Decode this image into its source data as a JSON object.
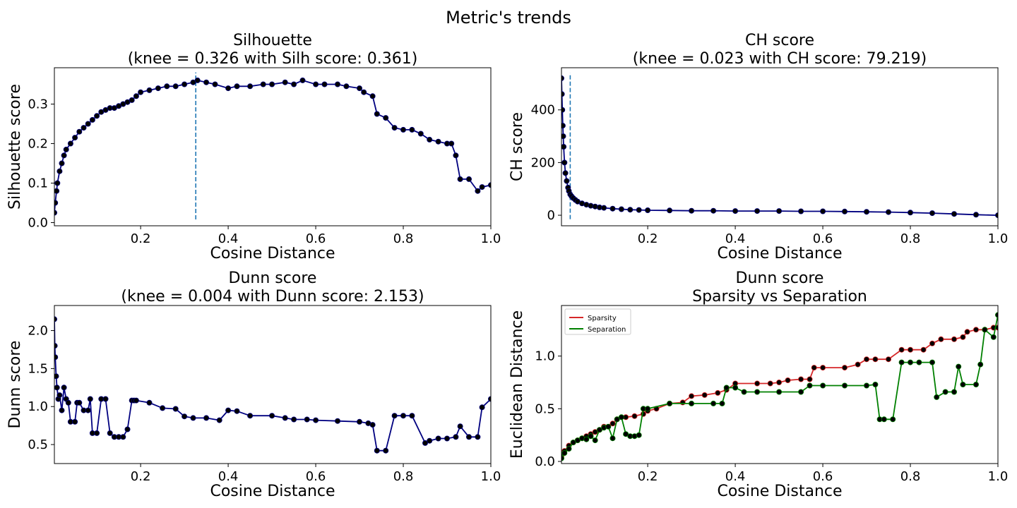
{
  "figure": {
    "title": "Metric's trends"
  },
  "chart_data": [
    {
      "type": "line",
      "title": "Silhouette",
      "subtitle": "(knee = 0.326 with Silh score: 0.361)",
      "xlabel": "Cosine Distance",
      "ylabel": "Silhouette score",
      "xlim": [
        0.003,
        1.0
      ],
      "ylim": [
        -0.008,
        0.392
      ],
      "xticks": [
        0.2,
        0.4,
        0.6,
        0.8,
        1.0
      ],
      "xtick_labels": [
        "0.2",
        "0.4",
        "0.6",
        "0.8",
        "1.0"
      ],
      "yticks": [
        0.0,
        0.1,
        0.2,
        0.3
      ],
      "ytick_labels": [
        "0.0",
        "0.1",
        "0.2",
        "0.3"
      ],
      "knee": {
        "x": 0.326,
        "y_range": [
          0.008,
          0.38
        ]
      },
      "grid": false,
      "series": [
        {
          "color": "#000080",
          "marker_color": "#000000",
          "x": [
            0.003,
            0.005,
            0.008,
            0.01,
            0.015,
            0.02,
            0.025,
            0.03,
            0.04,
            0.05,
            0.06,
            0.07,
            0.08,
            0.09,
            0.1,
            0.11,
            0.12,
            0.13,
            0.14,
            0.15,
            0.16,
            0.17,
            0.18,
            0.19,
            0.2,
            0.22,
            0.24,
            0.26,
            0.28,
            0.3,
            0.32,
            0.33,
            0.35,
            0.37,
            0.4,
            0.42,
            0.45,
            0.48,
            0.5,
            0.53,
            0.55,
            0.57,
            0.6,
            0.62,
            0.65,
            0.67,
            0.7,
            0.71,
            0.73,
            0.74,
            0.76,
            0.78,
            0.8,
            0.82,
            0.84,
            0.86,
            0.88,
            0.9,
            0.91,
            0.92,
            0.93,
            0.95,
            0.97,
            0.98,
            1.0
          ],
          "y": [
            0.025,
            0.05,
            0.08,
            0.1,
            0.13,
            0.15,
            0.17,
            0.185,
            0.2,
            0.215,
            0.23,
            0.24,
            0.25,
            0.26,
            0.27,
            0.28,
            0.285,
            0.29,
            0.29,
            0.295,
            0.3,
            0.305,
            0.31,
            0.32,
            0.33,
            0.335,
            0.34,
            0.345,
            0.345,
            0.35,
            0.355,
            0.36,
            0.355,
            0.35,
            0.34,
            0.345,
            0.345,
            0.35,
            0.35,
            0.355,
            0.35,
            0.36,
            0.35,
            0.35,
            0.35,
            0.345,
            0.34,
            0.33,
            0.32,
            0.275,
            0.265,
            0.24,
            0.235,
            0.235,
            0.225,
            0.21,
            0.205,
            0.2,
            0.2,
            0.17,
            0.11,
            0.11,
            0.08,
            0.09,
            0.095
          ]
        }
      ]
    },
    {
      "type": "line",
      "title": "CH score",
      "subtitle": "(knee = 0.023 with CH score: 79.219)",
      "xlabel": "Cosine Distance",
      "ylabel": "CH score",
      "xlim": [
        0.003,
        1.0
      ],
      "ylim": [
        -40,
        560
      ],
      "xticks": [
        0.2,
        0.4,
        0.6,
        0.8,
        1.0
      ],
      "xtick_labels": [
        "0.2",
        "0.4",
        "0.6",
        "0.8",
        "1.0"
      ],
      "yticks": [
        0,
        200,
        400
      ],
      "ytick_labels": [
        "0",
        "200",
        "400"
      ],
      "knee": {
        "x": 0.023,
        "y_range": [
          -15,
          540
        ]
      },
      "grid": false,
      "series": [
        {
          "color": "#000080",
          "marker_color": "#000000",
          "x": [
            0.003,
            0.004,
            0.005,
            0.006,
            0.007,
            0.008,
            0.01,
            0.012,
            0.015,
            0.018,
            0.02,
            0.023,
            0.026,
            0.03,
            0.035,
            0.04,
            0.05,
            0.06,
            0.07,
            0.08,
            0.09,
            0.1,
            0.12,
            0.14,
            0.16,
            0.18,
            0.2,
            0.25,
            0.3,
            0.35,
            0.4,
            0.45,
            0.5,
            0.55,
            0.6,
            0.65,
            0.7,
            0.75,
            0.8,
            0.85,
            0.9,
            0.95,
            1.0
          ],
          "y": [
            520,
            460,
            400,
            340,
            300,
            260,
            200,
            160,
            130,
            105,
            92,
            79,
            72,
            65,
            58,
            52,
            45,
            40,
            36,
            33,
            30,
            28,
            25,
            23,
            21,
            20,
            19,
            18,
            17,
            17,
            16,
            16,
            16,
            15,
            15,
            14,
            13,
            12,
            10,
            8,
            5,
            2,
            0
          ]
        }
      ]
    },
    {
      "type": "line",
      "title": "Dunn score",
      "subtitle": "(knee = 0.004 with Dunn score: 2.153)",
      "xlabel": "Cosine Distance",
      "ylabel": "Dunn score",
      "xlim": [
        0.003,
        1.0
      ],
      "ylim": [
        0.25,
        2.33
      ],
      "xticks": [
        0.2,
        0.4,
        0.6,
        0.8,
        1.0
      ],
      "xtick_labels": [
        "0.2",
        "0.4",
        "0.6",
        "0.8",
        "1.0"
      ],
      "yticks": [
        0.5,
        1.0,
        1.5,
        2.0
      ],
      "ytick_labels": [
        "0.5",
        "1.0",
        "1.5",
        "2.0"
      ],
      "grid": false,
      "series": [
        {
          "color": "#000080",
          "marker_color": "#000000",
          "x": [
            0.003,
            0.004,
            0.005,
            0.007,
            0.009,
            0.012,
            0.015,
            0.02,
            0.025,
            0.03,
            0.035,
            0.04,
            0.05,
            0.055,
            0.06,
            0.07,
            0.08,
            0.085,
            0.09,
            0.1,
            0.11,
            0.12,
            0.13,
            0.14,
            0.15,
            0.16,
            0.17,
            0.18,
            0.185,
            0.19,
            0.22,
            0.25,
            0.28,
            0.3,
            0.32,
            0.35,
            0.38,
            0.4,
            0.42,
            0.45,
            0.5,
            0.53,
            0.55,
            0.58,
            0.6,
            0.65,
            0.7,
            0.72,
            0.73,
            0.74,
            0.76,
            0.78,
            0.8,
            0.82,
            0.85,
            0.86,
            0.88,
            0.9,
            0.92,
            0.93,
            0.95,
            0.97,
            0.98,
            1.0
          ],
          "y": [
            2.15,
            1.8,
            1.65,
            1.4,
            1.25,
            1.1,
            1.15,
            0.95,
            1.25,
            1.1,
            1.05,
            0.8,
            0.8,
            1.05,
            1.05,
            0.95,
            0.95,
            1.1,
            0.65,
            0.65,
            1.1,
            1.1,
            0.65,
            0.6,
            0.6,
            0.6,
            0.7,
            1.08,
            1.08,
            1.08,
            1.05,
            0.98,
            0.97,
            0.87,
            0.85,
            0.85,
            0.82,
            0.95,
            0.94,
            0.88,
            0.88,
            0.85,
            0.83,
            0.83,
            0.82,
            0.81,
            0.8,
            0.78,
            0.76,
            0.42,
            0.42,
            0.88,
            0.88,
            0.88,
            0.52,
            0.55,
            0.58,
            0.58,
            0.6,
            0.74,
            0.6,
            0.6,
            0.99,
            1.1
          ]
        }
      ]
    },
    {
      "type": "line",
      "title": "Dunn score",
      "subtitle": "Sparsity vs Separation",
      "xlabel": "Cosine Distance",
      "ylabel": "Euclidean Distance",
      "xlim": [
        0.003,
        1.0
      ],
      "ylim": [
        -0.02,
        1.48
      ],
      "xticks": [
        0.2,
        0.4,
        0.6,
        0.8,
        1.0
      ],
      "xtick_labels": [
        "0.2",
        "0.4",
        "0.6",
        "0.8",
        "1.0"
      ],
      "yticks": [
        0.0,
        0.5,
        1.0
      ],
      "ytick_labels": [
        "0.0",
        "0.5",
        "1.0"
      ],
      "legend": "top-left",
      "grid": false,
      "series": [
        {
          "name": "Sparsity",
          "color": "#d62728",
          "marker_color": "#000000",
          "x": [
            0.003,
            0.01,
            0.02,
            0.03,
            0.04,
            0.05,
            0.06,
            0.07,
            0.08,
            0.09,
            0.1,
            0.12,
            0.13,
            0.15,
            0.17,
            0.19,
            0.2,
            0.22,
            0.25,
            0.28,
            0.3,
            0.33,
            0.36,
            0.38,
            0.4,
            0.45,
            0.48,
            0.5,
            0.52,
            0.55,
            0.57,
            0.58,
            0.6,
            0.65,
            0.68,
            0.7,
            0.72,
            0.75,
            0.78,
            0.8,
            0.83,
            0.85,
            0.87,
            0.9,
            0.92,
            0.93,
            0.95,
            0.97,
            0.99,
            1.0
          ],
          "y": [
            0.05,
            0.1,
            0.15,
            0.18,
            0.2,
            0.22,
            0.24,
            0.26,
            0.28,
            0.3,
            0.33,
            0.36,
            0.4,
            0.42,
            0.43,
            0.45,
            0.48,
            0.5,
            0.55,
            0.56,
            0.62,
            0.63,
            0.65,
            0.68,
            0.74,
            0.74,
            0.74,
            0.75,
            0.77,
            0.78,
            0.78,
            0.89,
            0.89,
            0.89,
            0.92,
            0.97,
            0.97,
            0.97,
            1.06,
            1.06,
            1.06,
            1.12,
            1.16,
            1.16,
            1.18,
            1.23,
            1.25,
            1.25,
            1.27,
            1.27
          ]
        },
        {
          "name": "Separation",
          "color": "#008000",
          "marker_color": "#000000",
          "x": [
            0.003,
            0.01,
            0.02,
            0.03,
            0.04,
            0.05,
            0.06,
            0.07,
            0.08,
            0.09,
            0.1,
            0.11,
            0.12,
            0.13,
            0.14,
            0.15,
            0.16,
            0.17,
            0.18,
            0.19,
            0.2,
            0.25,
            0.3,
            0.35,
            0.37,
            0.38,
            0.4,
            0.42,
            0.45,
            0.5,
            0.55,
            0.57,
            0.6,
            0.65,
            0.7,
            0.72,
            0.73,
            0.74,
            0.76,
            0.78,
            0.8,
            0.82,
            0.85,
            0.86,
            0.88,
            0.9,
            0.91,
            0.92,
            0.95,
            0.96,
            0.97,
            0.99,
            1.0
          ],
          "y": [
            0.03,
            0.08,
            0.12,
            0.18,
            0.2,
            0.22,
            0.21,
            0.24,
            0.2,
            0.3,
            0.32,
            0.33,
            0.22,
            0.4,
            0.42,
            0.26,
            0.24,
            0.24,
            0.25,
            0.5,
            0.5,
            0.55,
            0.55,
            0.55,
            0.55,
            0.7,
            0.7,
            0.66,
            0.66,
            0.66,
            0.66,
            0.72,
            0.72,
            0.72,
            0.72,
            0.73,
            0.4,
            0.4,
            0.4,
            0.94,
            0.94,
            0.94,
            0.94,
            0.61,
            0.66,
            0.66,
            0.9,
            0.73,
            0.73,
            0.92,
            1.25,
            1.18,
            1.39
          ]
        }
      ]
    }
  ]
}
